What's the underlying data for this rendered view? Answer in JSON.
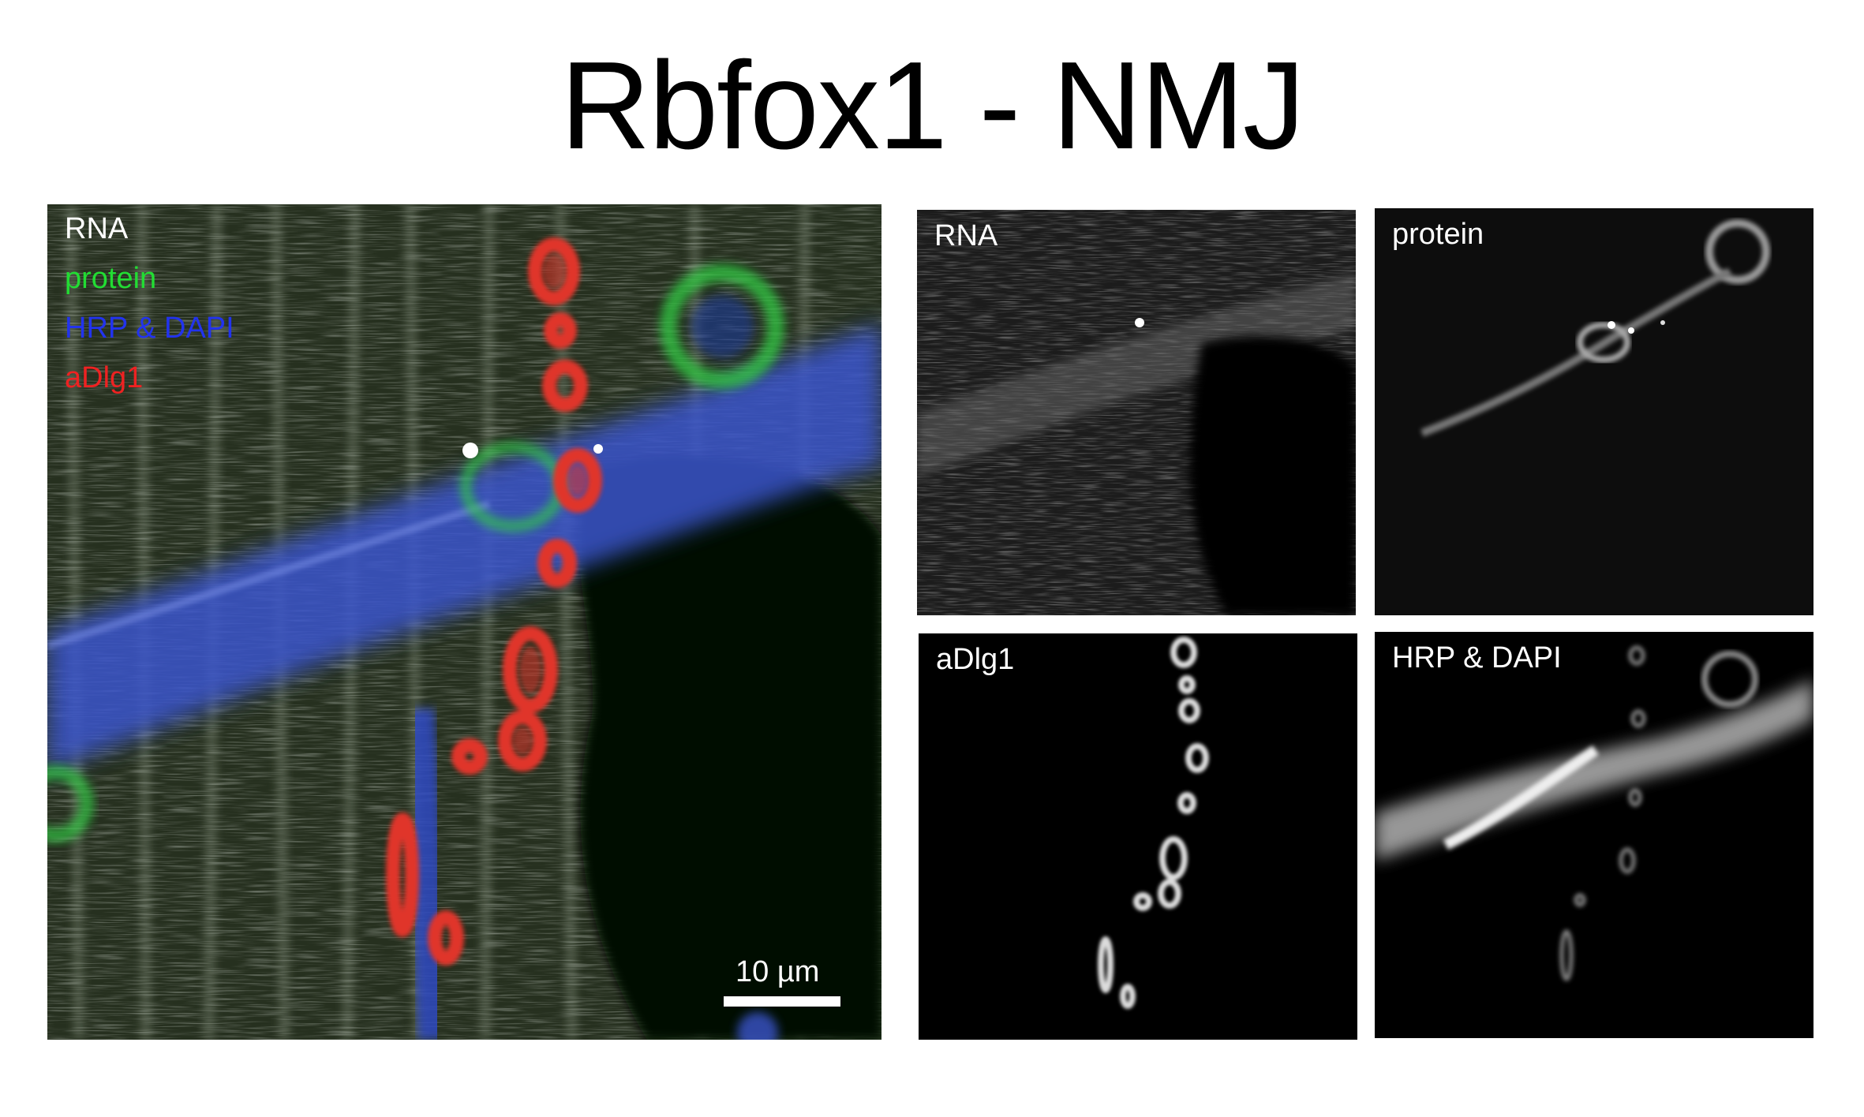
{
  "figure": {
    "title": "Rbfox1 - NMJ"
  },
  "merge_panel": {
    "legend": [
      {
        "text": "RNA",
        "color": "#ffffff"
      },
      {
        "text": "protein",
        "color": "#22dd33"
      },
      {
        "text": "HRP & DAPI",
        "color": "#2233ee"
      },
      {
        "text": "aDlg1",
        "color": "#ee2222"
      }
    ],
    "scale_bar_label": "10 µm"
  },
  "channel_panels": {
    "rna": "RNA",
    "protein": "protein",
    "dlg": "aDlg1",
    "hrp": "HRP & DAPI"
  },
  "colors": {
    "background": "#ffffff",
    "panel_background": "#000000",
    "merge_tissue": "#2b3328",
    "nerve_blue": "#3b55cc",
    "bouton_red": "#e0352a",
    "protein_green": "#33cc44"
  }
}
